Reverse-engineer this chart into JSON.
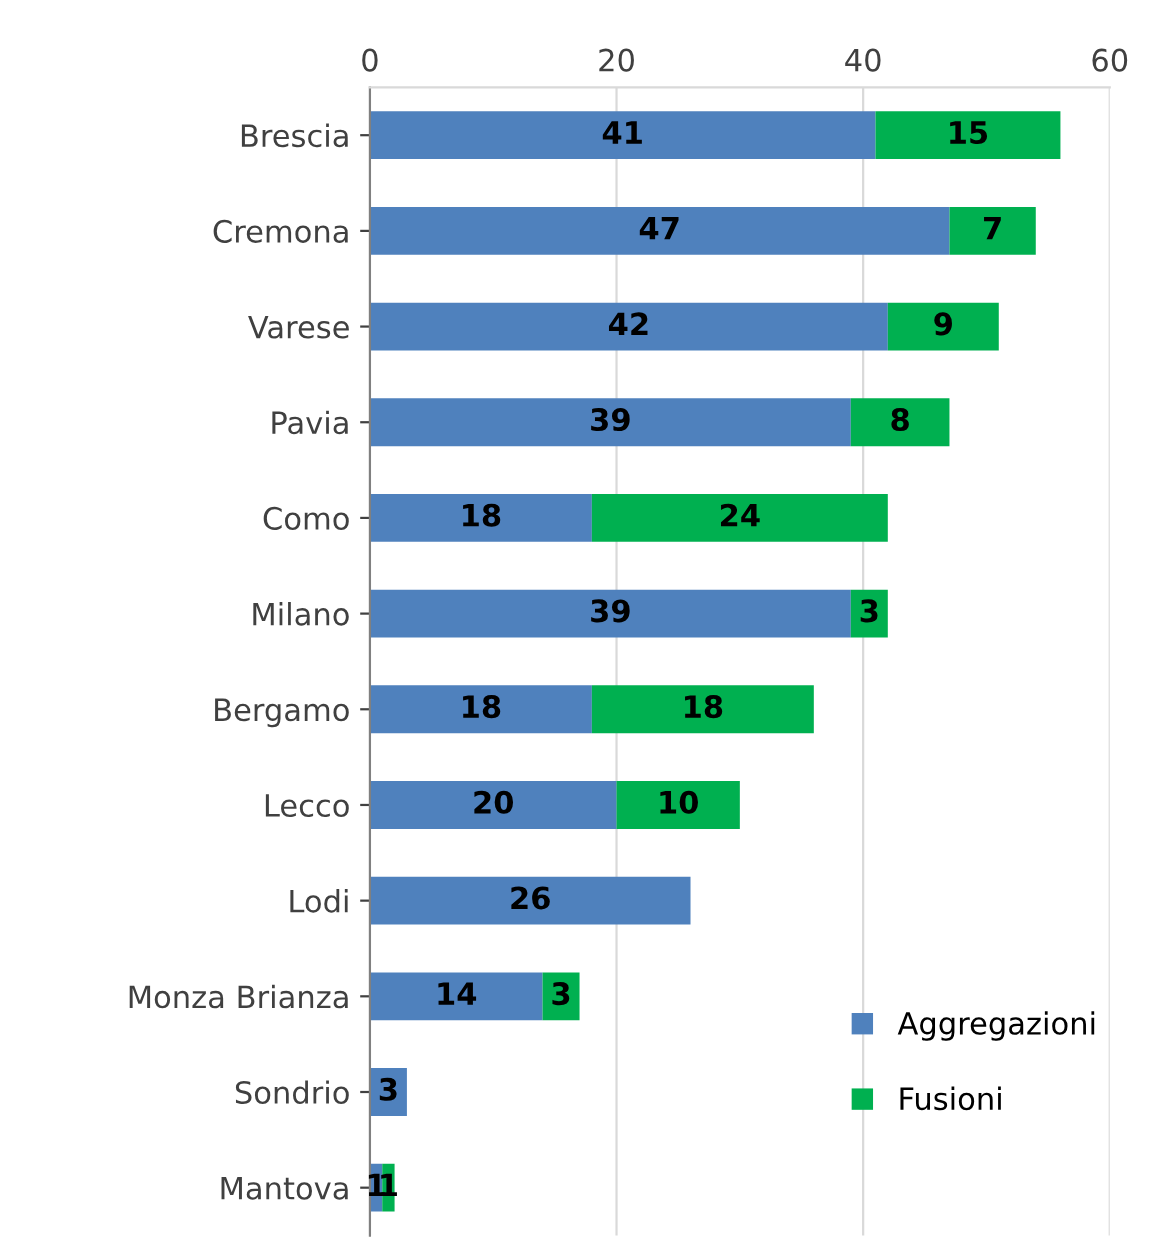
{
  "chart_data": {
    "type": "bar",
    "orientation": "horizontal",
    "stacked": true,
    "categories": [
      "Brescia",
      "Cremona",
      "Varese",
      "Pavia",
      "Como",
      "Milano",
      "Bergamo",
      "Lecco",
      "Lodi",
      "Monza Brianza",
      "Sondrio",
      "Mantova"
    ],
    "series": [
      {
        "name": "Aggregazioni",
        "color": "#4f81bd",
        "values": [
          41,
          47,
          42,
          39,
          18,
          39,
          18,
          20,
          26,
          14,
          3,
          1
        ]
      },
      {
        "name": "Fusioni",
        "color": "#00b050",
        "values": [
          15,
          7,
          9,
          8,
          24,
          3,
          18,
          10,
          null,
          3,
          null,
          1
        ]
      }
    ],
    "xlim": [
      0,
      60
    ],
    "xticks": [
      0,
      20,
      40,
      60
    ],
    "grid": "x",
    "legend": "bottom right",
    "data_labels": true
  }
}
